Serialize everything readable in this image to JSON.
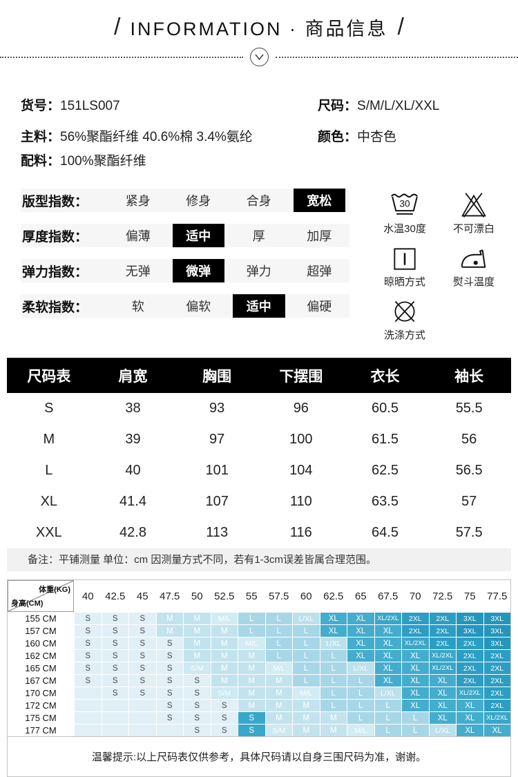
{
  "header": {
    "slash": "/",
    "title": "INFORMATION · 商品信息",
    "chevron_icon": "chevron-down"
  },
  "product_info": {
    "left": [
      {
        "label": "货号：",
        "value": "151LS007"
      },
      {
        "label": "主料：",
        "value": "56%聚酯纤维 40.6%棉  3.4%氨纶"
      },
      {
        "label": "配料：",
        "value": "100%聚酯纤维"
      }
    ],
    "right": [
      {
        "label": "尺码：",
        "value": "S/M/L/XL/XXL"
      },
      {
        "label": "颜色：",
        "value": "中杏色"
      }
    ]
  },
  "indices": [
    {
      "label": "版型指数：",
      "options": [
        "紧身",
        "修身",
        "合身",
        "宽松"
      ],
      "selected": 3
    },
    {
      "label": "厚度指数：",
      "options": [
        "偏薄",
        "适中",
        "厚",
        "加厚"
      ],
      "selected": 1
    },
    {
      "label": "弹力指数：",
      "options": [
        "无弹",
        "微弹",
        "弹力",
        "超弹"
      ],
      "selected": 1
    },
    {
      "label": "柔软指数：",
      "options": [
        "软",
        "偏软",
        "适中",
        "偏硬"
      ],
      "selected": 2
    }
  ],
  "highlight_color": "#000000",
  "care_icons": [
    {
      "icon": "wash-30-icon",
      "label": "水温30度"
    },
    {
      "icon": "no-bleach-icon",
      "label": "不可漂白"
    },
    {
      "icon": "line-dry-icon",
      "label": "晾晒方式"
    },
    {
      "icon": "iron-temp-icon",
      "label": "熨斗温度"
    },
    {
      "icon": "wash-method-icon",
      "label": "洗涤方式"
    }
  ],
  "size_table": {
    "headers": [
      "尺码表",
      "肩宽",
      "胸围",
      "下摆围",
      "衣长",
      "袖长"
    ],
    "rows": [
      [
        "S",
        "38",
        "93",
        "96",
        "60.5",
        "55.5"
      ],
      [
        "M",
        "39",
        "97",
        "100",
        "61.5",
        "56"
      ],
      [
        "L",
        "40",
        "101",
        "104",
        "62.5",
        "56.5"
      ],
      [
        "XL",
        "41.4",
        "107",
        "110",
        "63.5",
        "57"
      ],
      [
        "XXL",
        "42.8",
        "113",
        "116",
        "64.5",
        "57.5"
      ]
    ],
    "note": "备注：平铺测量 单位：cm 因测量方式不同，若有1-3cm误差皆属合理范围。"
  },
  "size_matrix": {
    "corner": {
      "top": "体重(KG)",
      "bottom": "身高(CM)"
    },
    "weight_headers": [
      "40",
      "42.5",
      "45",
      "47.5",
      "50",
      "52.5",
      "55",
      "57.5",
      "60",
      "62.5",
      "65",
      "67.5",
      "70",
      "72.5",
      "75",
      "77.5"
    ],
    "rows": [
      {
        "height": "155 CM",
        "cells": [
          "S",
          "S",
          "S",
          "M",
          "M",
          "M/L",
          "L",
          "L",
          "L/XL",
          "XL",
          "XL",
          "XL/2XL",
          "2XL",
          "2XL",
          "3XL",
          "3XL"
        ]
      },
      {
        "height": "157 CM",
        "cells": [
          "S",
          "S",
          "S",
          "M",
          "M",
          "M",
          "L",
          "L",
          "L",
          "XL",
          "XL",
          "XL",
          "2XL",
          "2XL",
          "3XL",
          "3XL"
        ]
      },
      {
        "height": "160 CM",
        "cells": [
          "S",
          "S",
          "S",
          "S",
          "M",
          "M",
          "M/L",
          "L",
          "L",
          "L/XL",
          "XL",
          "XL",
          "XL/2XL",
          "2XL",
          "2XL",
          "3XL"
        ]
      },
      {
        "height": "162 CM",
        "cells": [
          "S",
          "S",
          "S",
          "S",
          "M",
          "M",
          "M",
          "L",
          "L",
          "L",
          "XL",
          "XL",
          "XL",
          "XL/2XL",
          "2XL",
          "2XL"
        ]
      },
      {
        "height": "165 CM",
        "cells": [
          "S",
          "S",
          "S",
          "S",
          "S/M",
          "M",
          "M",
          "M/L",
          "L",
          "L",
          "L/XL",
          "XL",
          "XL",
          "XL/2XL",
          "2XL",
          "2XL"
        ]
      },
      {
        "height": "167 CM",
        "cells": [
          "S",
          "S",
          "S",
          "S",
          "S",
          "M",
          "M",
          "M",
          "L",
          "L",
          "L",
          "XL",
          "XL",
          "XL",
          "2XL",
          "2XL"
        ]
      },
      {
        "height": "170 CM",
        "cells": [
          "",
          "S",
          "S",
          "S",
          "S",
          "S/M",
          "M",
          "M",
          "M/L",
          "L",
          "L",
          "L/XL",
          "XL",
          "XL",
          "XL/2XL",
          "2XL"
        ]
      },
      {
        "height": "172 CM",
        "cells": [
          "",
          "",
          "",
          "S",
          "S",
          "S",
          "M",
          "M",
          "M",
          "L",
          "L",
          "L",
          "XL",
          "XL",
          "XL",
          "2XL"
        ]
      },
      {
        "height": "175 CM",
        "cells": [
          "",
          "",
          "",
          "S",
          "S",
          "S",
          "S!",
          "M",
          "M",
          "M",
          "L",
          "L",
          "L",
          "XL",
          "XL",
          "XL/2XL"
        ]
      },
      {
        "height": "177 CM",
        "cells": [
          "",
          "",
          "",
          "",
          "S",
          "S",
          "S!",
          "S/M",
          "M",
          "M",
          "M/L",
          "L",
          "L",
          "L/XL",
          "XL",
          "XL"
        ]
      }
    ],
    "footer": "温馨提示:以上尺码表仅供参考，具体尺码请以自身三围尺码为准，谢谢。"
  },
  "matrix_colors": {
    "": "#e1f0f6",
    "S": "#e1f0f6",
    "S!": "#39a7c9",
    "S/M": "#cde9f2",
    "M": "#c2e3ee",
    "M/L": "#d2ecf4",
    "L": "#a7d7e7",
    "L/XL": "#bce1ed",
    "XL": "#44adcd",
    "XL/2XL": "#39a7c9",
    "2XL": "#2c9ec4",
    "3XL": "#2496bc"
  },
  "matrix_dark_text": "#4a4a4a"
}
